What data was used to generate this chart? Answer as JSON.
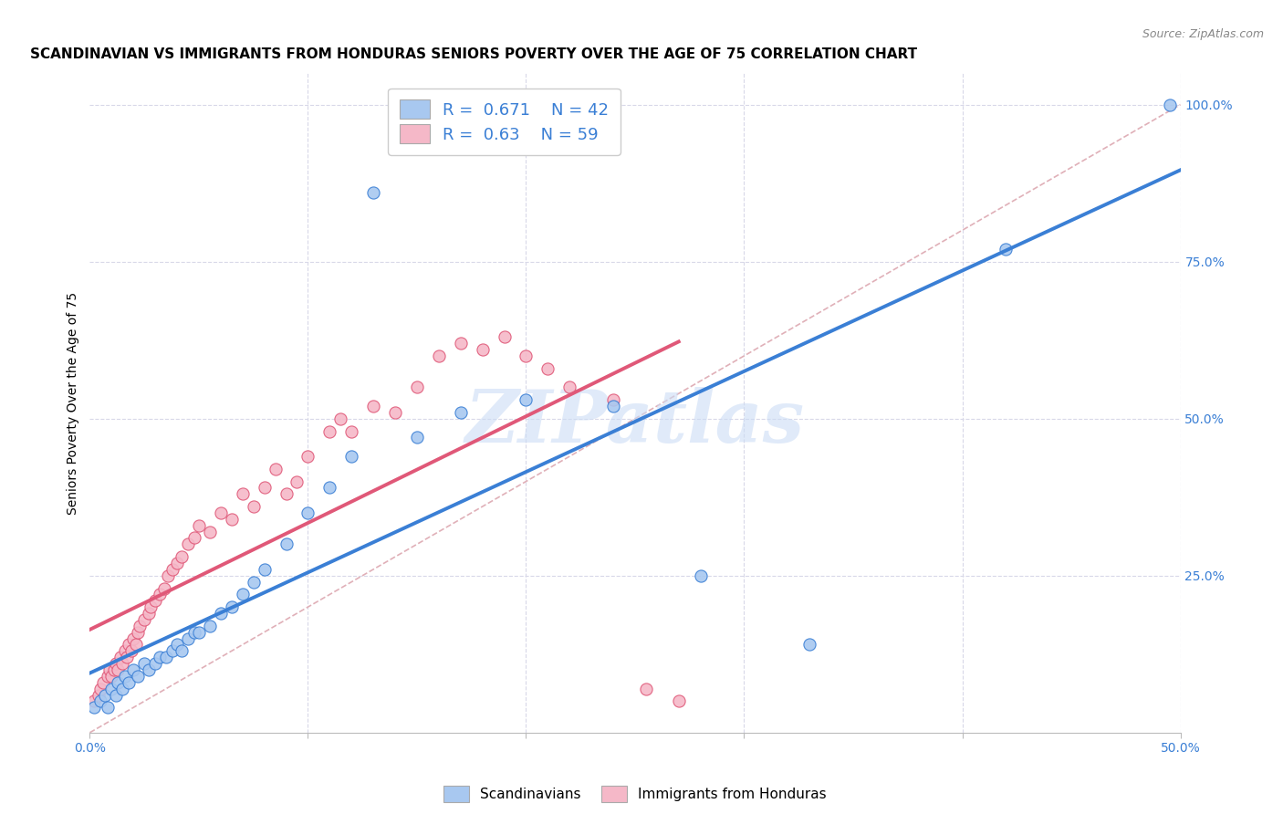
{
  "title": "SCANDINAVIAN VS IMMIGRANTS FROM HONDURAS SENIORS POVERTY OVER THE AGE OF 75 CORRELATION CHART",
  "source": "Source: ZipAtlas.com",
  "ylabel": "Seniors Poverty Over the Age of 75",
  "xlim": [
    0.0,
    0.5
  ],
  "ylim": [
    0.0,
    1.05
  ],
  "blue_R": 0.671,
  "blue_N": 42,
  "pink_R": 0.63,
  "pink_N": 59,
  "blue_color": "#a8c8f0",
  "pink_color": "#f5b8c8",
  "line_blue": "#3a7fd5",
  "line_pink": "#e05878",
  "diagonal_color": "#e0b0b8",
  "background_color": "#ffffff",
  "grid_color": "#d8d8e8",
  "watermark": "ZIPatlas",
  "blue_scatter_x": [
    0.002,
    0.005,
    0.007,
    0.008,
    0.01,
    0.012,
    0.013,
    0.015,
    0.016,
    0.018,
    0.02,
    0.022,
    0.025,
    0.027,
    0.03,
    0.032,
    0.035,
    0.038,
    0.04,
    0.042,
    0.045,
    0.048,
    0.05,
    0.055,
    0.06,
    0.065,
    0.07,
    0.075,
    0.08,
    0.09,
    0.1,
    0.11,
    0.12,
    0.13,
    0.15,
    0.17,
    0.2,
    0.24,
    0.28,
    0.33,
    0.42,
    0.495
  ],
  "blue_scatter_y": [
    0.04,
    0.05,
    0.06,
    0.04,
    0.07,
    0.06,
    0.08,
    0.07,
    0.09,
    0.08,
    0.1,
    0.09,
    0.11,
    0.1,
    0.11,
    0.12,
    0.12,
    0.13,
    0.14,
    0.13,
    0.15,
    0.16,
    0.16,
    0.17,
    0.19,
    0.2,
    0.22,
    0.24,
    0.26,
    0.3,
    0.35,
    0.39,
    0.44,
    0.86,
    0.47,
    0.51,
    0.53,
    0.52,
    0.25,
    0.14,
    0.77,
    1.0
  ],
  "pink_scatter_x": [
    0.002,
    0.004,
    0.005,
    0.006,
    0.008,
    0.009,
    0.01,
    0.011,
    0.012,
    0.013,
    0.014,
    0.015,
    0.016,
    0.017,
    0.018,
    0.019,
    0.02,
    0.021,
    0.022,
    0.023,
    0.025,
    0.027,
    0.028,
    0.03,
    0.032,
    0.034,
    0.036,
    0.038,
    0.04,
    0.042,
    0.045,
    0.048,
    0.05,
    0.055,
    0.06,
    0.065,
    0.07,
    0.075,
    0.08,
    0.085,
    0.09,
    0.095,
    0.1,
    0.11,
    0.115,
    0.12,
    0.13,
    0.14,
    0.15,
    0.16,
    0.17,
    0.18,
    0.19,
    0.2,
    0.21,
    0.22,
    0.24,
    0.255,
    0.27
  ],
  "pink_scatter_y": [
    0.05,
    0.06,
    0.07,
    0.08,
    0.09,
    0.1,
    0.09,
    0.1,
    0.11,
    0.1,
    0.12,
    0.11,
    0.13,
    0.12,
    0.14,
    0.13,
    0.15,
    0.14,
    0.16,
    0.17,
    0.18,
    0.19,
    0.2,
    0.21,
    0.22,
    0.23,
    0.25,
    0.26,
    0.27,
    0.28,
    0.3,
    0.31,
    0.33,
    0.32,
    0.35,
    0.34,
    0.38,
    0.36,
    0.39,
    0.42,
    0.38,
    0.4,
    0.44,
    0.48,
    0.5,
    0.48,
    0.52,
    0.51,
    0.55,
    0.6,
    0.62,
    0.61,
    0.63,
    0.6,
    0.58,
    0.55,
    0.53,
    0.07,
    0.05
  ],
  "title_fontsize": 11,
  "label_fontsize": 10,
  "tick_fontsize": 10,
  "legend_fontsize": 13
}
